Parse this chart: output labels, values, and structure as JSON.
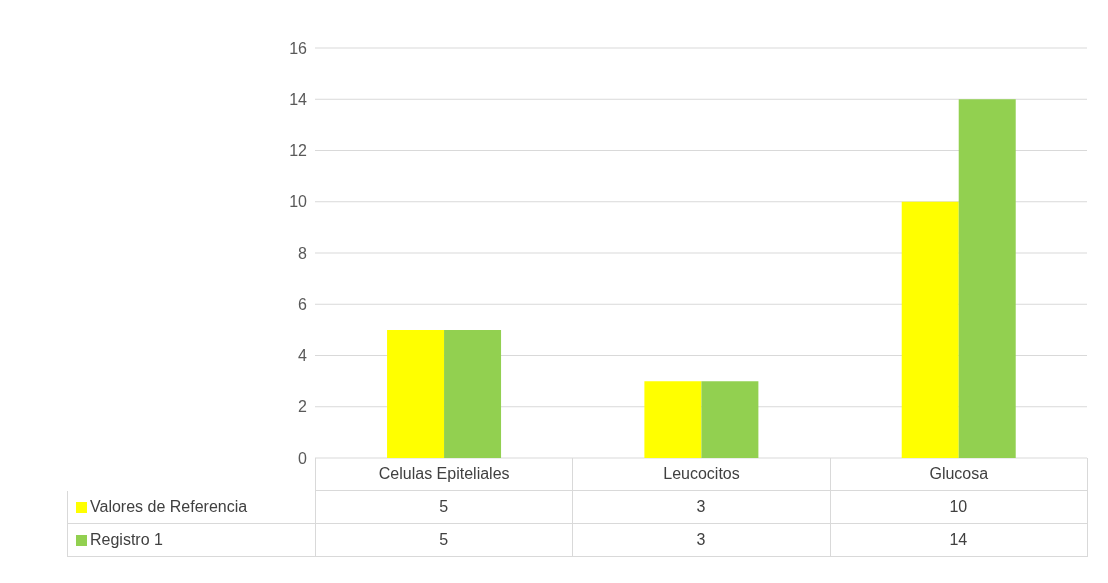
{
  "chart_data": {
    "type": "bar",
    "categories": [
      "Celulas Epiteliales",
      "Leucocitos",
      "Glucosa"
    ],
    "series": [
      {
        "name": "Valores de Referencia",
        "color": "#ffff00",
        "values": [
          5,
          3,
          10
        ]
      },
      {
        "name": "Registro 1",
        "color": "#92d050",
        "values": [
          5,
          3,
          14
        ]
      }
    ],
    "ylim": [
      0,
      16
    ],
    "yticks": [
      0,
      2,
      4,
      6,
      8,
      10,
      12,
      14,
      16
    ],
    "grid": "y",
    "legend": "bottom",
    "data_labels": true
  }
}
